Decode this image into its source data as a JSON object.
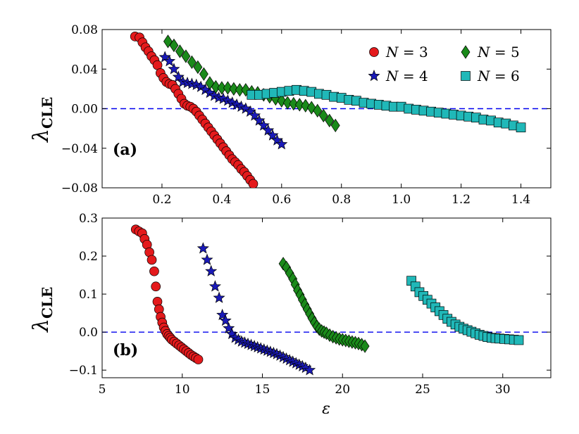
{
  "chart_data": [
    {
      "type": "scatter",
      "panel": "(a)",
      "ylabel": "λ",
      "ylabel_sub": "CLE",
      "xlabel": "",
      "xlim": [
        0.0,
        1.5
      ],
      "ylim": [
        -0.08,
        0.08
      ],
      "xticks": [
        0.2,
        0.4,
        0.6,
        0.8,
        1.0,
        1.2,
        1.4
      ],
      "xtick_labels": [
        "0.2",
        "0.4",
        "0.6",
        "0.8",
        "1.0",
        "1.2",
        "1.4"
      ],
      "yticks": [
        -0.08,
        -0.04,
        0.0,
        0.04,
        0.08
      ],
      "ytick_labels": [
        "−0.08",
        "−0.04",
        "0.00",
        "0.04",
        "0.08"
      ],
      "reference_line": 0.0,
      "legend_position": "top-right",
      "series": [
        {
          "name": "N = 3",
          "marker": "circle",
          "color": "#e41a1c",
          "x": [
            0.11,
            0.125,
            0.135,
            0.145,
            0.155,
            0.165,
            0.175,
            0.185,
            0.195,
            0.205,
            0.215,
            0.225,
            0.235,
            0.245,
            0.255,
            0.265,
            0.275,
            0.285,
            0.295,
            0.305,
            0.315,
            0.325,
            0.335,
            0.345,
            0.355,
            0.365,
            0.375,
            0.385,
            0.395,
            0.405,
            0.415,
            0.425,
            0.435,
            0.445,
            0.455,
            0.465,
            0.475,
            0.485,
            0.495,
            0.505
          ],
          "y": [
            0.073,
            0.072,
            0.067,
            0.062,
            0.058,
            0.053,
            0.049,
            0.044,
            0.036,
            0.031,
            0.027,
            0.025,
            0.024,
            0.02,
            0.015,
            0.01,
            0.005,
            0.003,
            0.002,
            0.0,
            -0.003,
            -0.007,
            -0.011,
            -0.015,
            -0.019,
            -0.023,
            -0.027,
            -0.031,
            -0.035,
            -0.039,
            -0.043,
            -0.047,
            -0.051,
            -0.054,
            -0.057,
            -0.061,
            -0.064,
            -0.068,
            -0.072,
            -0.076
          ]
        },
        {
          "name": "N = 4",
          "marker": "star",
          "color": "#1a1ab8",
          "x": [
            0.21,
            0.225,
            0.24,
            0.255,
            0.27,
            0.285,
            0.3,
            0.315,
            0.33,
            0.345,
            0.36,
            0.375,
            0.39,
            0.405,
            0.42,
            0.435,
            0.45,
            0.465,
            0.48,
            0.495,
            0.51,
            0.525,
            0.54,
            0.555,
            0.57,
            0.585,
            0.6
          ],
          "y": [
            0.052,
            0.048,
            0.04,
            0.032,
            0.027,
            0.026,
            0.025,
            0.024,
            0.022,
            0.019,
            0.016,
            0.013,
            0.011,
            0.01,
            0.008,
            0.006,
            0.004,
            0.002,
            0.0,
            -0.003,
            -0.007,
            -0.012,
            -0.017,
            -0.022,
            -0.027,
            -0.032,
            -0.036
          ]
        },
        {
          "name": "N = 5",
          "marker": "diamond",
          "color": "#1a8a1a",
          "x": [
            0.22,
            0.24,
            0.26,
            0.28,
            0.3,
            0.32,
            0.34,
            0.36,
            0.38,
            0.4,
            0.42,
            0.44,
            0.46,
            0.48,
            0.5,
            0.52,
            0.54,
            0.56,
            0.58,
            0.6,
            0.62,
            0.64,
            0.66,
            0.68,
            0.7,
            0.72,
            0.74,
            0.76,
            0.78
          ],
          "y": [
            0.068,
            0.064,
            0.058,
            0.053,
            0.047,
            0.042,
            0.035,
            0.026,
            0.022,
            0.021,
            0.021,
            0.02,
            0.019,
            0.019,
            0.017,
            0.016,
            0.014,
            0.012,
            0.01,
            0.008,
            0.006,
            0.005,
            0.004,
            0.003,
            0.001,
            -0.002,
            -0.007,
            -0.012,
            -0.017
          ]
        },
        {
          "name": "N = 6",
          "marker": "square",
          "color": "#20b8b8",
          "x": [
            0.5,
            0.525,
            0.55,
            0.575,
            0.6,
            0.625,
            0.65,
            0.675,
            0.7,
            0.725,
            0.75,
            0.775,
            0.8,
            0.825,
            0.85,
            0.875,
            0.9,
            0.925,
            0.95,
            0.975,
            1.0,
            1.025,
            1.05,
            1.075,
            1.1,
            1.125,
            1.15,
            1.175,
            1.2,
            1.225,
            1.25,
            1.275,
            1.3,
            1.325,
            1.35,
            1.375,
            1.4
          ],
          "y": [
            0.014,
            0.014,
            0.015,
            0.016,
            0.017,
            0.018,
            0.019,
            0.018,
            0.017,
            0.015,
            0.014,
            0.012,
            0.011,
            0.009,
            0.008,
            0.006,
            0.005,
            0.004,
            0.003,
            0.002,
            0.002,
            0.0,
            -0.001,
            -0.002,
            -0.003,
            -0.004,
            -0.005,
            -0.006,
            -0.007,
            -0.008,
            -0.009,
            -0.011,
            -0.012,
            -0.014,
            -0.015,
            -0.017,
            -0.019
          ]
        }
      ]
    },
    {
      "type": "scatter",
      "panel": "(b)",
      "ylabel": "λ",
      "ylabel_sub": "CLE",
      "xlabel": "ε",
      "xlim": [
        5,
        33
      ],
      "ylim": [
        -0.12,
        0.3
      ],
      "xticks": [
        5,
        10,
        15,
        20,
        25,
        30
      ],
      "xtick_labels": [
        "5",
        "10",
        "15",
        "20",
        "25",
        "30"
      ],
      "yticks": [
        -0.1,
        0.0,
        0.1,
        0.2,
        0.3
      ],
      "ytick_labels": [
        "−0.1",
        "0.0",
        "0.1",
        "0.2",
        "0.3"
      ],
      "reference_line": 0.0,
      "series": [
        {
          "name": "N = 3",
          "marker": "circle",
          "color": "#e41a1c",
          "x": [
            7.1,
            7.3,
            7.5,
            7.65,
            7.8,
            7.95,
            8.1,
            8.25,
            8.35,
            8.45,
            8.55,
            8.65,
            8.75,
            8.85,
            8.95,
            9.05,
            9.15,
            9.25,
            9.35,
            9.5,
            9.65,
            9.8,
            9.95,
            10.1,
            10.25,
            10.4,
            10.55,
            10.7,
            10.85,
            11.0
          ],
          "y": [
            0.27,
            0.265,
            0.26,
            0.245,
            0.23,
            0.21,
            0.19,
            0.16,
            0.12,
            0.08,
            0.06,
            0.04,
            0.025,
            0.012,
            0.003,
            -0.005,
            -0.01,
            -0.015,
            -0.02,
            -0.025,
            -0.03,
            -0.035,
            -0.04,
            -0.045,
            -0.05,
            -0.055,
            -0.06,
            -0.064,
            -0.068,
            -0.072
          ]
        },
        {
          "name": "N = 4",
          "marker": "star",
          "color": "#1a1ab8",
          "x": [
            11.3,
            11.55,
            11.8,
            12.05,
            12.3,
            12.5,
            12.7,
            12.9,
            13.1,
            13.3,
            13.5,
            13.7,
            13.9,
            14.1,
            14.3,
            14.5,
            14.7,
            14.9,
            15.1,
            15.3,
            15.5,
            15.7,
            15.9,
            16.1,
            16.3,
            16.5,
            16.7,
            16.9,
            17.1,
            17.3,
            17.5,
            17.7,
            17.95
          ],
          "y": [
            0.22,
            0.19,
            0.16,
            0.12,
            0.09,
            0.045,
            0.03,
            0.01,
            -0.005,
            -0.015,
            -0.02,
            -0.025,
            -0.028,
            -0.031,
            -0.034,
            -0.037,
            -0.04,
            -0.043,
            -0.046,
            -0.049,
            -0.052,
            -0.055,
            -0.058,
            -0.062,
            -0.066,
            -0.07,
            -0.074,
            -0.078,
            -0.082,
            -0.086,
            -0.09,
            -0.094,
            -0.1
          ]
        },
        {
          "name": "N = 5",
          "marker": "diamond",
          "color": "#1a8a1a",
          "x": [
            16.3,
            16.5,
            16.7,
            16.9,
            17.05,
            17.2,
            17.35,
            17.5,
            17.65,
            17.8,
            17.95,
            18.1,
            18.25,
            18.4,
            18.55,
            18.7,
            18.85,
            19.0,
            19.2,
            19.4,
            19.6,
            19.8,
            20.0,
            20.2,
            20.4,
            20.6,
            20.8,
            21.0,
            21.2,
            21.4
          ],
          "y": [
            0.18,
            0.17,
            0.155,
            0.14,
            0.125,
            0.11,
            0.098,
            0.085,
            0.072,
            0.06,
            0.048,
            0.036,
            0.025,
            0.015,
            0.008,
            0.003,
            0.0,
            -0.003,
            -0.008,
            -0.012,
            -0.015,
            -0.018,
            -0.02,
            -0.022,
            -0.024,
            -0.026,
            -0.028,
            -0.03,
            -0.033,
            -0.037
          ]
        },
        {
          "name": "N = 6",
          "marker": "square",
          "color": "#20b8b8",
          "x": [
            24.3,
            24.55,
            24.8,
            25.05,
            25.3,
            25.55,
            25.8,
            26.05,
            26.3,
            26.55,
            26.8,
            27.05,
            27.3,
            27.55,
            27.8,
            28.05,
            28.3,
            28.55,
            28.8,
            29.05,
            29.3,
            29.55,
            29.8,
            30.1,
            30.4,
            30.7,
            31.0
          ],
          "y": [
            0.135,
            0.12,
            0.105,
            0.095,
            0.085,
            0.075,
            0.065,
            0.055,
            0.045,
            0.035,
            0.027,
            0.02,
            0.014,
            0.009,
            0.005,
            0.001,
            -0.003,
            -0.007,
            -0.01,
            -0.013,
            -0.015,
            -0.016,
            -0.017,
            -0.018,
            -0.019,
            -0.02,
            -0.021
          ]
        }
      ]
    }
  ]
}
